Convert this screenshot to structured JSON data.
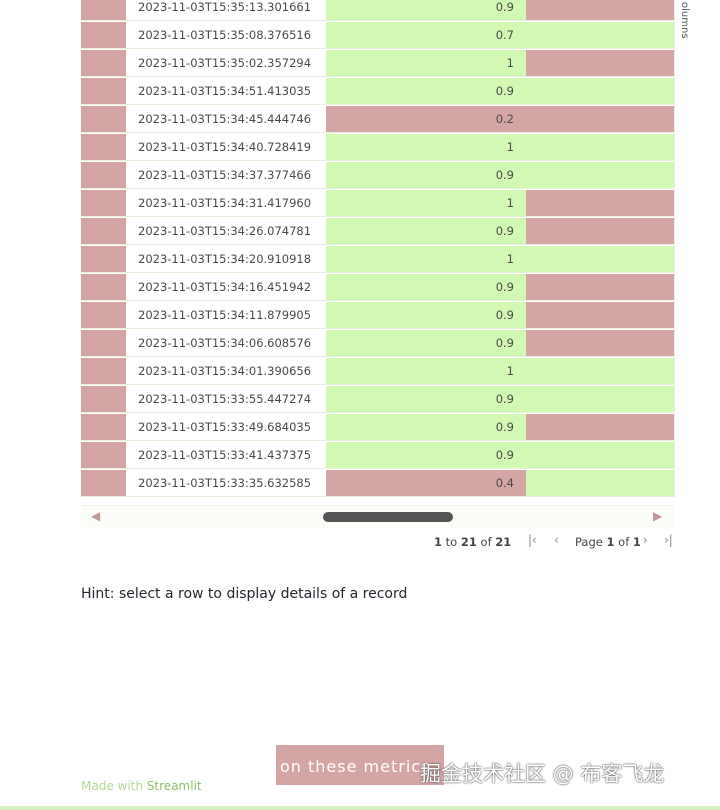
{
  "sidebar_label": "olumns",
  "rows": [
    {
      "time": "2023-11-03T15:35:13.301661",
      "value": 0.9,
      "value_color": "#d2f8b4",
      "flag_color": "#d4a5a5"
    },
    {
      "time": "2023-11-03T15:35:08.376516",
      "value": 0.7,
      "value_color": "#d2f8b4",
      "flag_color": "#d2f8b4"
    },
    {
      "time": "2023-11-03T15:35:02.357294",
      "value": 1,
      "value_color": "#d2f8b4",
      "flag_color": "#d4a5a5"
    },
    {
      "time": "2023-11-03T15:34:51.413035",
      "value": 0.9,
      "value_color": "#d2f8b4",
      "flag_color": "#d2f8b4"
    },
    {
      "time": "2023-11-03T15:34:45.444746",
      "value": 0.2,
      "value_color": "#d4a5a5",
      "flag_color": "#d4a5a5"
    },
    {
      "time": "2023-11-03T15:34:40.728419",
      "value": 1,
      "value_color": "#d2f8b4",
      "flag_color": "#d2f8b4"
    },
    {
      "time": "2023-11-03T15:34:37.377466",
      "value": 0.9,
      "value_color": "#d2f8b4",
      "flag_color": "#d2f8b4"
    },
    {
      "time": "2023-11-03T15:34:31.417960",
      "value": 1,
      "value_color": "#d2f8b4",
      "flag_color": "#d4a5a5"
    },
    {
      "time": "2023-11-03T15:34:26.074781",
      "value": 0.9,
      "value_color": "#d2f8b4",
      "flag_color": "#d4a5a5"
    },
    {
      "time": "2023-11-03T15:34:20.910918",
      "value": 1,
      "value_color": "#d2f8b4",
      "flag_color": "#d2f8b4"
    },
    {
      "time": "2023-11-03T15:34:16.451942",
      "value": 0.9,
      "value_color": "#d2f8b4",
      "flag_color": "#d4a5a5"
    },
    {
      "time": "2023-11-03T15:34:11.879905",
      "value": 0.9,
      "value_color": "#d2f8b4",
      "flag_color": "#d4a5a5"
    },
    {
      "time": "2023-11-03T15:34:06.608576",
      "value": 0.9,
      "value_color": "#d2f8b4",
      "flag_color": "#d4a5a5"
    },
    {
      "time": "2023-11-03T15:34:01.390656",
      "value": 1,
      "value_color": "#d2f8b4",
      "flag_color": "#d2f8b4"
    },
    {
      "time": "2023-11-03T15:33:55.447274",
      "value": 0.9,
      "value_color": "#d2f8b4",
      "flag_color": "#d2f8b4"
    },
    {
      "time": "2023-11-03T15:33:49.684035",
      "value": 0.9,
      "value_color": "#d2f8b4",
      "flag_color": "#d4a5a5"
    },
    {
      "time": "2023-11-03T15:33:41.437375",
      "value": 0.9,
      "value_color": "#d2f8b4",
      "flag_color": "#d2f8b4"
    },
    {
      "time": "2023-11-03T15:33:35.632585",
      "value": 0.4,
      "value_color": "#d4a5a5",
      "flag_color": "#d2f8b4"
    }
  ],
  "pagination": {
    "from": 1,
    "to_word": "to",
    "to": 21,
    "of_word": "of",
    "total": 21,
    "page_word": "Page",
    "page": 1,
    "page_of_word": "of",
    "pages": 1
  },
  "hint": "Hint: select a row to display details of a record",
  "footer": {
    "made_with": "Made with",
    "brand": "Streamlit"
  },
  "overlay_text": "on these metrics",
  "watermark": "掘金技术社区 @ 布客飞龙"
}
